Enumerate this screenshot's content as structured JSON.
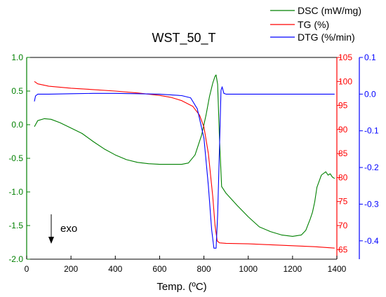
{
  "chart_data": {
    "type": "line",
    "title": "WST_50_T",
    "xlabel": "Temp. (ºC)",
    "xlim": [
      0,
      1400
    ],
    "x_ticks": [
      0,
      200,
      400,
      600,
      800,
      1000,
      1200,
      1400
    ],
    "y_left": {
      "lim": [
        -2.0,
        1.0
      ],
      "ticks": [
        1.0,
        0.5,
        0.0,
        -0.5,
        -1.0,
        -1.5,
        -2.0
      ],
      "tick_labels": [
        "1.0",
        "0.5",
        "0.0",
        "-0.5",
        "-1.0",
        "-1.5",
        "-2.0"
      ],
      "color": "#008000"
    },
    "y_tg": {
      "lim": [
        63,
        105
      ],
      "ticks": [
        105,
        100,
        95,
        90,
        85,
        80,
        75,
        70,
        65
      ],
      "color": "#ff0000"
    },
    "y_dtg": {
      "lim": [
        -0.45,
        0.1
      ],
      "ticks": [
        0.1,
        0.0,
        -0.1,
        -0.2,
        -0.3,
        -0.4
      ],
      "tick_labels": [
        "0.1",
        "0.0",
        "-0.1",
        "-0.2",
        "-0.3",
        "-0.4"
      ],
      "color": "#0000ff"
    },
    "legend_position": "top-right",
    "annotation": "exo",
    "series": [
      {
        "name": "DSC (mW/mg)",
        "axis": "left",
        "color": "#008000",
        "x": [
          35,
          50,
          80,
          110,
          150,
          200,
          250,
          300,
          350,
          400,
          450,
          500,
          550,
          600,
          650,
          700,
          730,
          760,
          790,
          810,
          825,
          840,
          850,
          855,
          862,
          870,
          880,
          900,
          950,
          1000,
          1050,
          1100,
          1150,
          1200,
          1240,
          1260,
          1280,
          1290,
          1300,
          1310,
          1330,
          1350,
          1360,
          1370,
          1380,
          1390
        ],
        "y": [
          -0.03,
          0.06,
          0.09,
          0.08,
          0.03,
          -0.05,
          -0.13,
          -0.25,
          -0.36,
          -0.45,
          -0.52,
          -0.56,
          -0.58,
          -0.59,
          -0.59,
          -0.59,
          -0.57,
          -0.45,
          -0.15,
          0.15,
          0.42,
          0.62,
          0.72,
          0.74,
          0.6,
          -0.2,
          -0.92,
          -1.02,
          -1.2,
          -1.37,
          -1.52,
          -1.59,
          -1.64,
          -1.66,
          -1.64,
          -1.57,
          -1.4,
          -1.3,
          -1.15,
          -0.93,
          -0.75,
          -0.7,
          -0.75,
          -0.73,
          -0.78,
          -0.8
        ]
      },
      {
        "name": "TG (%)",
        "axis": "tg",
        "color": "#ff0000",
        "x": [
          35,
          50,
          100,
          200,
          300,
          400,
          500,
          600,
          650,
          700,
          750,
          780,
          800,
          820,
          840,
          850,
          860,
          870,
          900,
          1000,
          1100,
          1200,
          1300,
          1390
        ],
        "y": [
          100.0,
          99.5,
          99.0,
          98.6,
          98.3,
          98.0,
          97.6,
          97.1,
          96.7,
          96.0,
          94.8,
          93.0,
          90.5,
          85.0,
          76.0,
          70.0,
          66.8,
          66.4,
          66.3,
          66.2,
          66.0,
          65.8,
          65.6,
          65.3
        ]
      },
      {
        "name": "DTG (%/min)",
        "axis": "dtg",
        "color": "#0000ff",
        "x": [
          35,
          40,
          50,
          100,
          200,
          300,
          400,
          500,
          600,
          650,
          700,
          740,
          770,
          800,
          820,
          835,
          845,
          855,
          862,
          870,
          877,
          882,
          890,
          900,
          1000,
          1100,
          1200,
          1300,
          1390
        ],
        "y": [
          -0.02,
          -0.005,
          0.0,
          0.0,
          0.001,
          0.002,
          0.002,
          0.001,
          0.0,
          -0.002,
          -0.004,
          -0.01,
          -0.04,
          -0.12,
          -0.25,
          -0.37,
          -0.42,
          -0.42,
          -0.33,
          -0.15,
          0.01,
          0.02,
          0.002,
          0.0,
          0.0,
          0.0,
          0.0,
          0.0,
          0.0
        ]
      }
    ]
  }
}
